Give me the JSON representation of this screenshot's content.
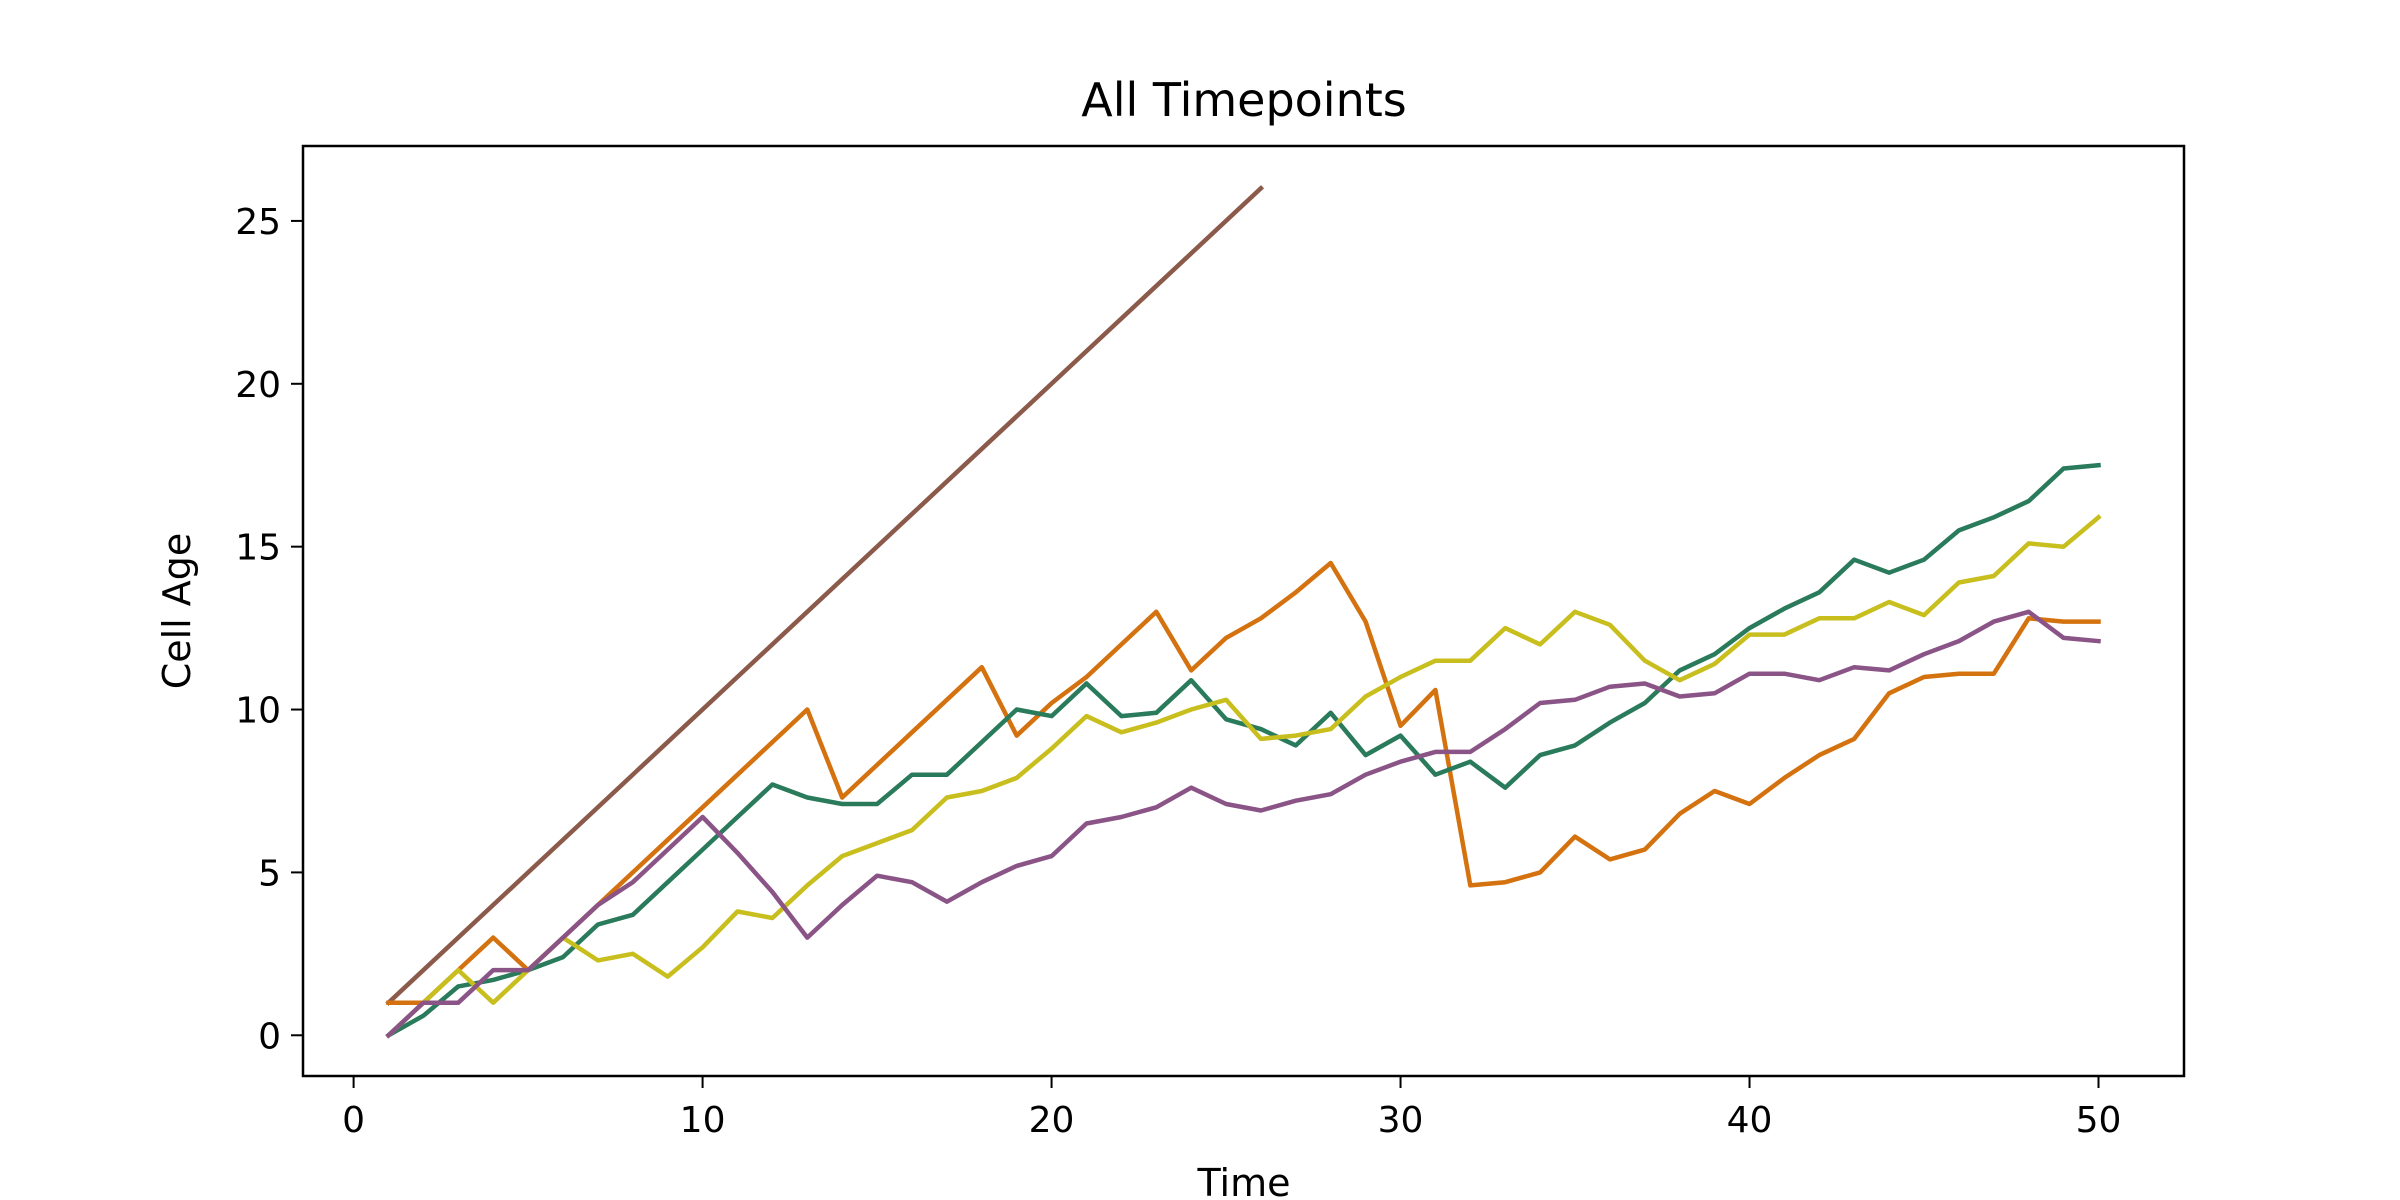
{
  "chart_data": {
    "type": "line",
    "title": "All Timepoints",
    "xlabel": "Time",
    "ylabel": "Cell Age",
    "xlim": [
      -1.45,
      52.45
    ],
    "ylim": [
      -1.25,
      27.3
    ],
    "xticks": [
      0,
      10,
      20,
      30,
      40,
      50
    ],
    "yticks": [
      0,
      5,
      10,
      15,
      20,
      25
    ],
    "grid": false,
    "series": [
      {
        "color": "#8c5a4b",
        "x": [
          1,
          26
        ],
        "y": [
          1,
          26
        ]
      },
      {
        "color": "#d4720f",
        "x": [
          1,
          2,
          3,
          4,
          5,
          6,
          7,
          8,
          9,
          10,
          11,
          12,
          13,
          14,
          15,
          16,
          17,
          18,
          19,
          20,
          21,
          22,
          23,
          24,
          25,
          26,
          27,
          28,
          29,
          30,
          31,
          32,
          33,
          34,
          35,
          36,
          37,
          38,
          39,
          40,
          41,
          42,
          43,
          44,
          45,
          46,
          47,
          48,
          49,
          50
        ],
        "y": [
          1,
          1,
          2,
          3,
          2,
          3,
          4,
          5,
          6,
          7,
          8,
          9,
          10,
          7.3,
          8.3,
          9.3,
          10.3,
          11.3,
          9.2,
          10.2,
          11,
          12,
          13,
          11.2,
          12.2,
          12.8,
          13.6,
          14.5,
          12.7,
          9.5,
          10.6,
          4.6,
          4.7,
          5,
          6.1,
          5.4,
          5.7,
          6.8,
          7.5,
          7.1,
          7.9,
          8.6,
          9.1,
          10.5,
          11,
          11.1,
          11.1,
          12.8,
          12.7,
          12.7
        ]
      },
      {
        "color": "#2a7a5c",
        "x": [
          1,
          2,
          3,
          4,
          5,
          6,
          7,
          8,
          9,
          10,
          11,
          12,
          13,
          14,
          15,
          16,
          17,
          18,
          19,
          20,
          21,
          22,
          23,
          24,
          25,
          26,
          27,
          28,
          29,
          30,
          31,
          32,
          33,
          34,
          35,
          36,
          37,
          38,
          39,
          40,
          41,
          42,
          43,
          44,
          45,
          46,
          47,
          48,
          49,
          50
        ],
        "y": [
          0,
          0.6,
          1.5,
          1.7,
          2,
          2.4,
          3.4,
          3.7,
          4.7,
          5.7,
          6.7,
          7.7,
          7.3,
          7.1,
          7.1,
          8,
          8,
          9,
          10,
          9.8,
          10.8,
          9.8,
          9.9,
          10.9,
          9.7,
          9.4,
          8.9,
          9.9,
          8.6,
          9.2,
          8,
          8.4,
          7.6,
          8.6,
          8.9,
          9.6,
          10.2,
          11.2,
          11.7,
          12.5,
          13.1,
          13.6,
          14.6,
          14.2,
          14.6,
          15.5,
          15.9,
          16.4,
          17.4,
          17.5
        ]
      },
      {
        "color": "#c8bf1e",
        "x": [
          1,
          2,
          3,
          4,
          5,
          6,
          7,
          8,
          9,
          10,
          11,
          12,
          13,
          14,
          15,
          16,
          17,
          18,
          19,
          20,
          21,
          22,
          23,
          24,
          25,
          26,
          27,
          28,
          29,
          30,
          31,
          32,
          33,
          34,
          35,
          36,
          37,
          38,
          39,
          40,
          41,
          42,
          43,
          44,
          45,
          46,
          47,
          48,
          49,
          50
        ],
        "y": [
          0,
          1,
          2,
          1,
          2,
          3,
          2.3,
          2.5,
          1.8,
          2.7,
          3.8,
          3.6,
          4.6,
          5.5,
          5.9,
          6.3,
          7.3,
          7.5,
          7.9,
          8.8,
          9.8,
          9.3,
          9.6,
          10,
          10.3,
          9.1,
          9.2,
          9.4,
          10.4,
          11,
          11.5,
          11.5,
          12.5,
          12,
          13,
          12.6,
          11.5,
          10.9,
          11.4,
          12.3,
          12.3,
          12.8,
          12.8,
          13.3,
          12.9,
          13.9,
          14.1,
          15.1,
          15,
          15.9
        ]
      },
      {
        "color": "#8a5487",
        "x": [
          1,
          2,
          3,
          4,
          5,
          6,
          7,
          8,
          9,
          10,
          11,
          12,
          13,
          14,
          15,
          16,
          17,
          18,
          19,
          20,
          21,
          22,
          23,
          24,
          25,
          26,
          27,
          28,
          29,
          30,
          31,
          32,
          33,
          34,
          35,
          36,
          37,
          38,
          39,
          40,
          41,
          42,
          43,
          44,
          45,
          46,
          47,
          48,
          49,
          50
        ],
        "y": [
          0,
          1,
          1,
          2,
          2,
          3,
          4,
          4.7,
          5.7,
          6.7,
          5.6,
          4.4,
          3,
          4,
          4.9,
          4.7,
          4.1,
          4.7,
          5.2,
          5.5,
          6.5,
          6.7,
          7,
          7.6,
          7.1,
          6.9,
          7.2,
          7.4,
          8,
          8.4,
          8.7,
          8.7,
          9.4,
          10.2,
          10.3,
          10.7,
          10.8,
          10.4,
          10.5,
          11.1,
          11.1,
          10.9,
          11.3,
          11.2,
          11.7,
          12.1,
          12.7,
          13,
          12.2,
          12.1
        ]
      }
    ]
  }
}
